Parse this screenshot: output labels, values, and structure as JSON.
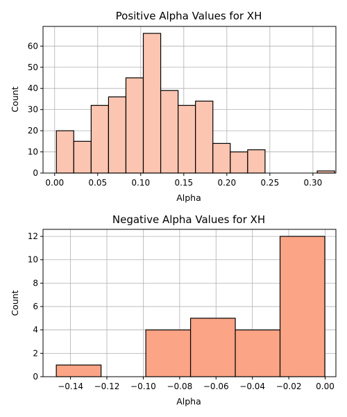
{
  "chart_data": [
    {
      "type": "bar",
      "title": "Positive Alpha Values for XH",
      "xlabel": "Alpha",
      "ylabel": "Count",
      "bar_color": "#fcc5b1",
      "grid": true,
      "xlim": [
        -0.0135,
        0.3267
      ],
      "ylim": [
        0,
        69.3
      ],
      "xticks": [
        0.0,
        0.05,
        0.1,
        0.15,
        0.2,
        0.25,
        0.3
      ],
      "xtick_labels": [
        "0.00",
        "0.05",
        "0.10",
        "0.15",
        "0.20",
        "0.25",
        "0.30"
      ],
      "yticks": [
        0,
        10,
        20,
        30,
        40,
        50,
        60
      ],
      "ytick_labels": [
        "0",
        "10",
        "20",
        "30",
        "40",
        "50",
        "60"
      ],
      "bin_edges": [
        0.002,
        0.0222,
        0.0424,
        0.0626,
        0.0828,
        0.103,
        0.1232,
        0.1434,
        0.1636,
        0.1838,
        0.204,
        0.2242,
        0.2444,
        0.2646,
        0.2848,
        0.305,
        0.3252
      ],
      "counts": [
        20,
        15,
        32,
        36,
        45,
        66,
        39,
        32,
        34,
        14,
        10,
        11,
        0,
        0,
        0,
        1
      ]
    },
    {
      "type": "bar",
      "title": "Negative Alpha Values for XH",
      "xlabel": "Alpha",
      "ylabel": "Count",
      "bar_color": "#fca486",
      "grid": true,
      "xlim": [
        -0.1551,
        0.0059
      ],
      "ylim": [
        0,
        12.6
      ],
      "xticks": [
        -0.14,
        -0.12,
        -0.1,
        -0.08,
        -0.06,
        -0.04,
        -0.02,
        0.0
      ],
      "xtick_labels": [
        "−0.14",
        "−0.12",
        "−0.10",
        "−0.08",
        "−0.06",
        "−0.04",
        "−0.02",
        "0.00"
      ],
      "yticks": [
        0,
        2,
        4,
        6,
        8,
        10,
        12
      ],
      "ytick_labels": [
        "0",
        "2",
        "4",
        "6",
        "8",
        "10",
        "12"
      ],
      "bin_edges": [
        -0.1478,
        -0.1232,
        -0.0986,
        -0.074,
        -0.0494,
        -0.0248,
        -0.0002
      ],
      "counts": [
        1,
        0,
        4,
        5,
        4,
        12
      ]
    }
  ]
}
